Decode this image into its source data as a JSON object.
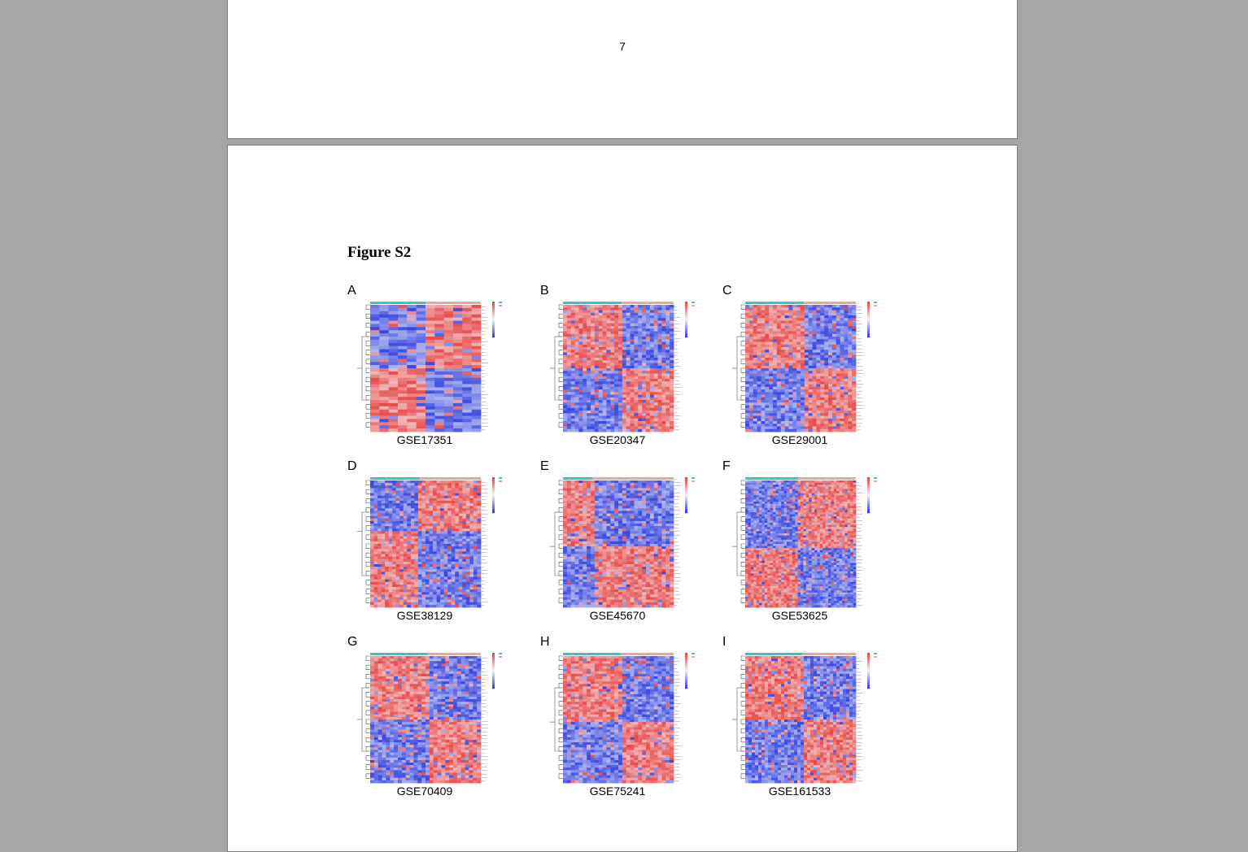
{
  "previous_page": {
    "page_number": "7"
  },
  "figure": {
    "title": "Figure S2",
    "panels": [
      {
        "letter": "A",
        "dataset": "GSE17351"
      },
      {
        "letter": "B",
        "dataset": "GSE20347"
      },
      {
        "letter": "C",
        "dataset": "GSE29001"
      },
      {
        "letter": "D",
        "dataset": "GSE38129"
      },
      {
        "letter": "E",
        "dataset": "GSE45670"
      },
      {
        "letter": "F",
        "dataset": "GSE53625"
      },
      {
        "letter": "G",
        "dataset": "GSE70409"
      },
      {
        "letter": "H",
        "dataset": "GSE75241"
      },
      {
        "letter": "I",
        "dataset": "GSE161533"
      }
    ]
  },
  "colors": {
    "high": "#e8413f",
    "low": "#2f3fe0",
    "mid": "#f4f4f8",
    "group_normal": "#36c5cf",
    "group_tumor": "#f0a39e",
    "viewer_background": "#a6a6a6"
  }
}
